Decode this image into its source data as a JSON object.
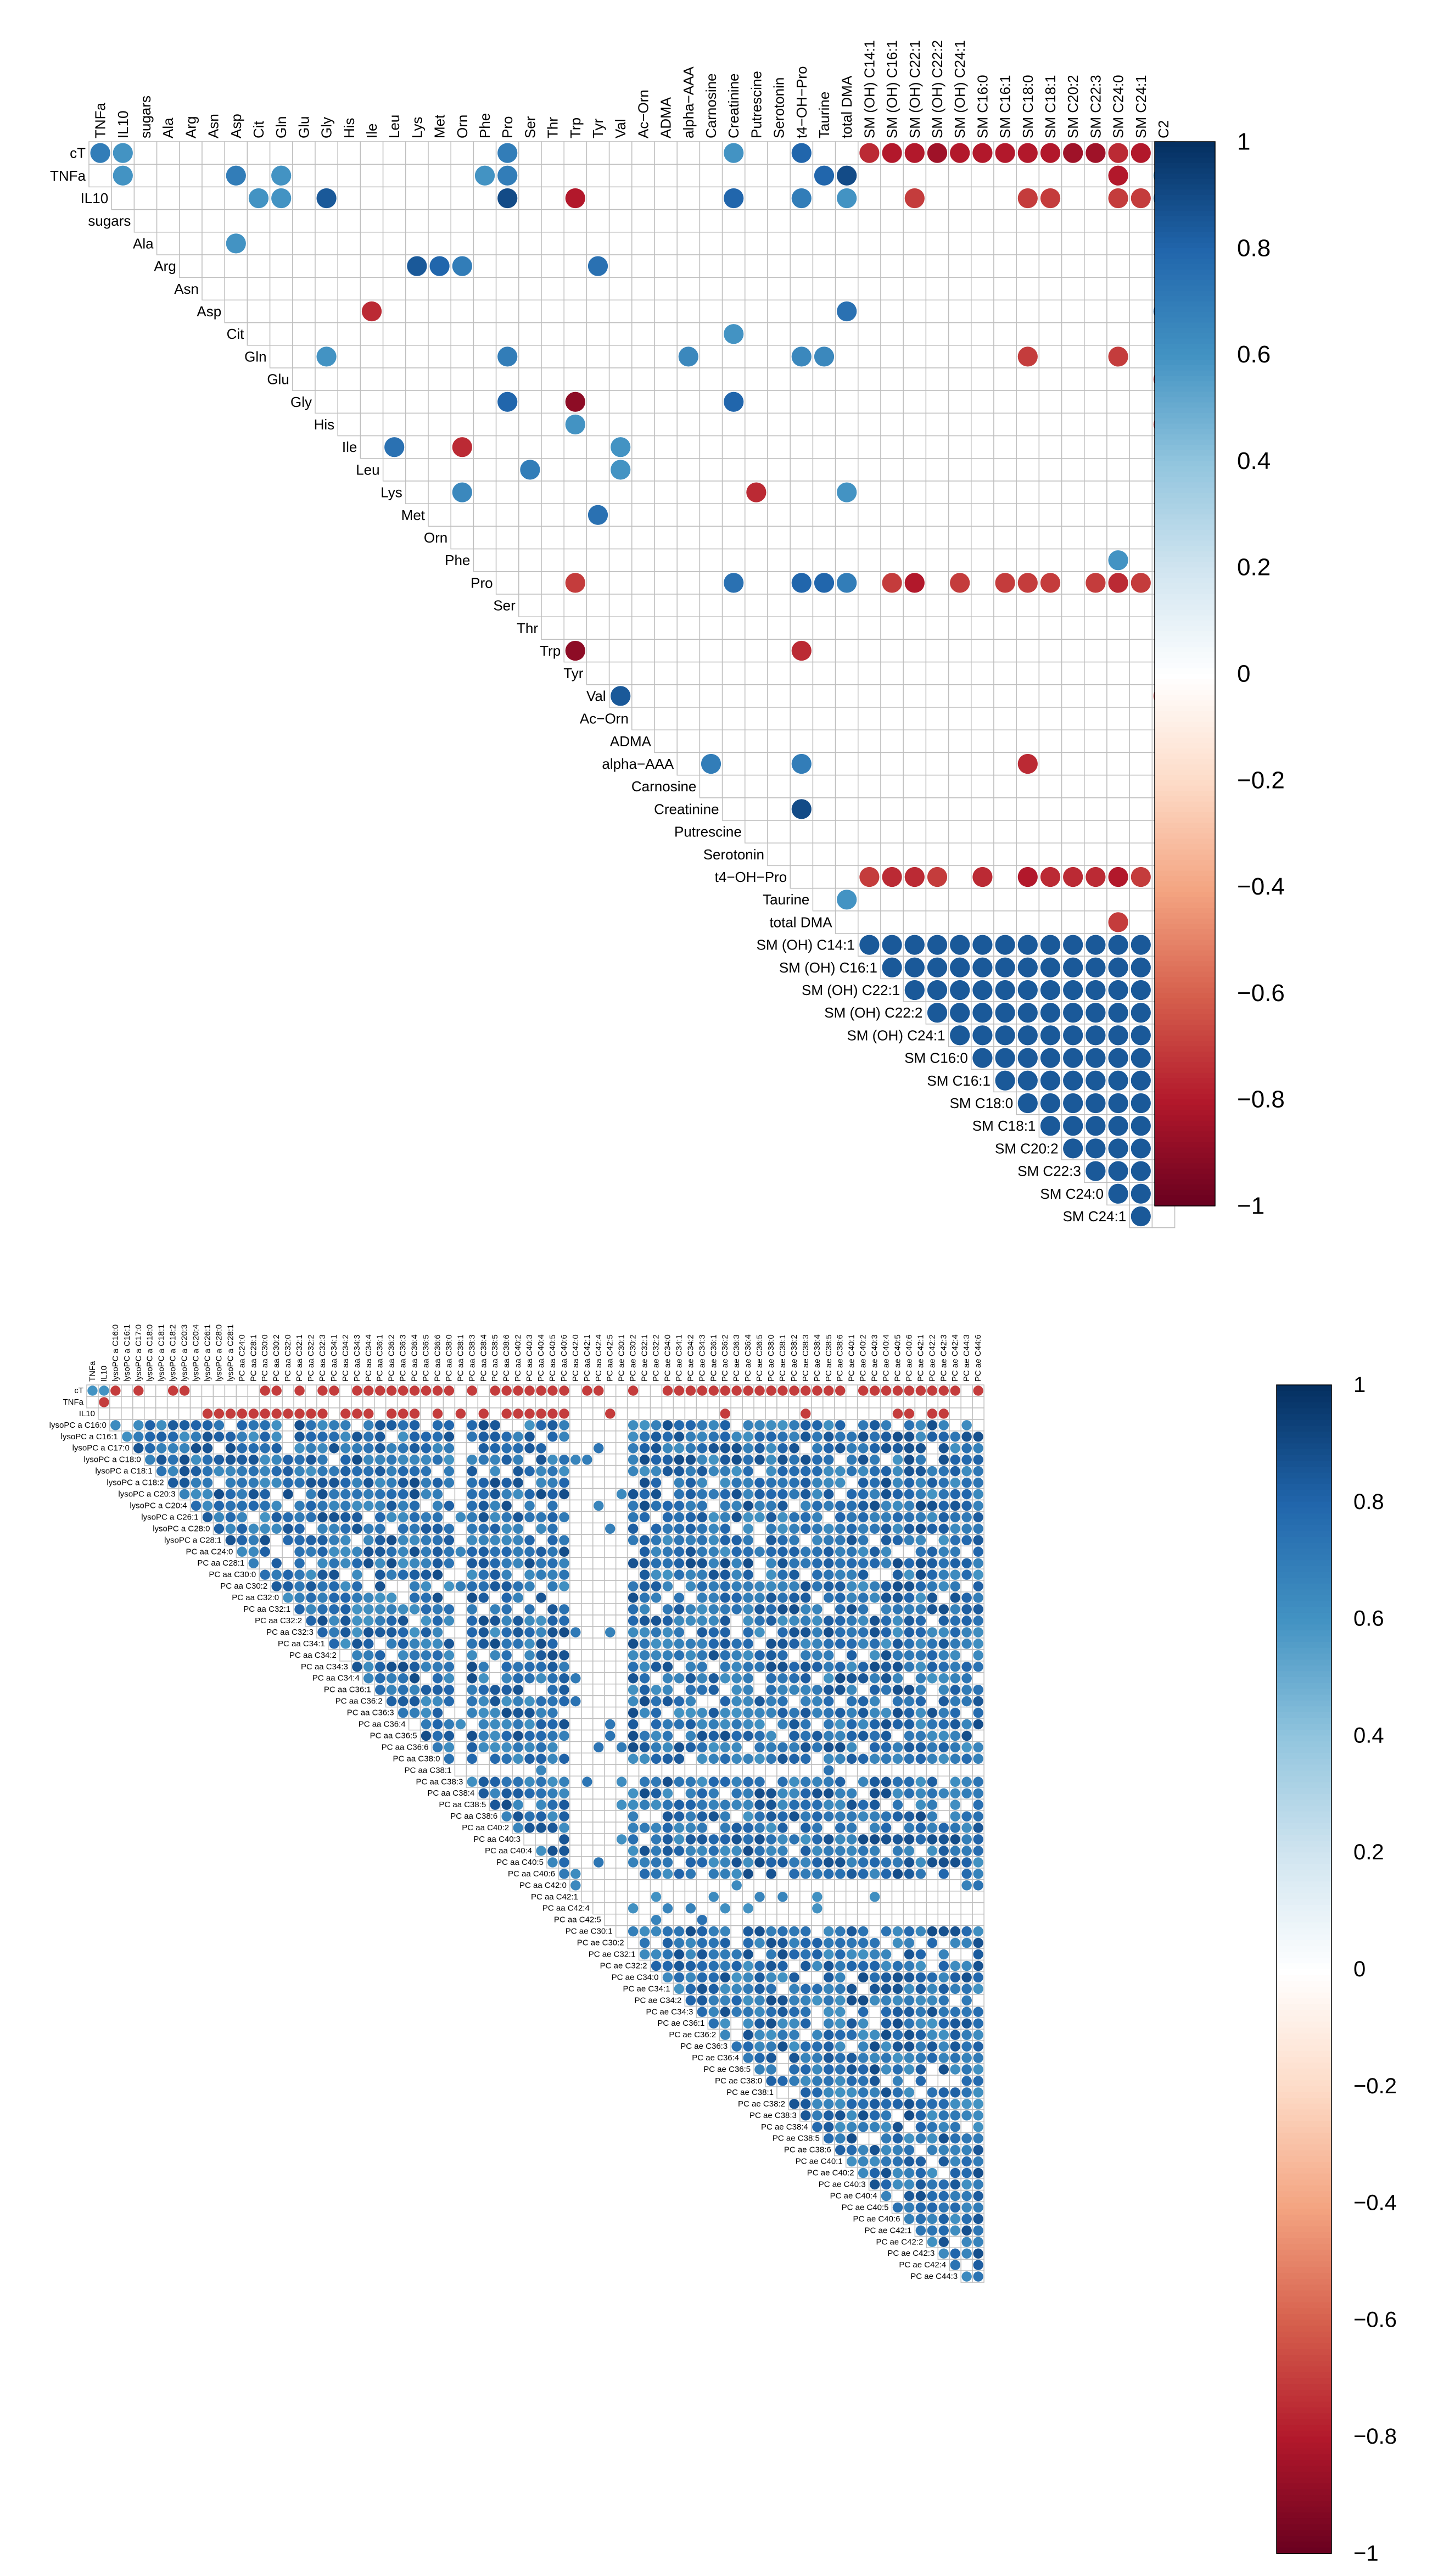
{
  "chart_data": [
    {
      "type": "heatmap",
      "subtype": "correlation-upper-triangle",
      "title": "",
      "columns": [
        "TNFa",
        "IL10",
        "sugars",
        "Ala",
        "Arg",
        "Asn",
        "Asp",
        "Cit",
        "Gln",
        "Glu",
        "Gly",
        "His",
        "Ile",
        "Leu",
        "Lys",
        "Met",
        "Orn",
        "Phe",
        "Pro",
        "Ser",
        "Thr",
        "Trp",
        "Tyr",
        "Val",
        "Ac−Orn",
        "ADMA",
        "alpha−AAA",
        "Carnosine",
        "Creatinine",
        "Putrescine",
        "Serotonin",
        "t4−OH−Pro",
        "Taurine",
        "total DMA",
        "SM (OH) C14:1",
        "SM (OH) C16:1",
        "SM (OH) C22:1",
        "SM (OH) C22:2",
        "SM (OH) C24:1",
        "SM C16:0",
        "SM C16:1",
        "SM C18:0",
        "SM C18:1",
        "SM C20:2",
        "SM C22:3",
        "SM C24:0",
        "SM C24:1",
        "C2"
      ],
      "rows": [
        "cT",
        "TNFa",
        "IL10",
        "sugars",
        "Ala",
        "Arg",
        "Asn",
        "Asp",
        "Cit",
        "Gln",
        "Glu",
        "Gly",
        "His",
        "Ile",
        "Leu",
        "Lys",
        "Met",
        "Orn",
        "Phe",
        "Pro",
        "Ser",
        "Thr",
        "Trp",
        "Tyr",
        "Val",
        "Ac−Orn",
        "ADMA",
        "alpha−AAA",
        "Carnosine",
        "Creatinine",
        "Putrescine",
        "Serotonin",
        "t4−OH−Pro",
        "Taurine",
        "total DMA",
        "SM (OH) C14:1",
        "SM (OH) C16:1",
        "SM (OH) C22:1",
        "SM (OH) C22:2",
        "SM (OH) C24:1",
        "SM C16:0",
        "SM C16:1",
        "SM C18:0",
        "SM C18:1",
        "SM C20:2",
        "SM C22:3",
        "SM C24:0",
        "SM C24:1"
      ],
      "cells": [
        [
          0,
          0,
          0.7
        ],
        [
          0,
          1,
          0.6
        ],
        [
          0,
          18,
          0.7
        ],
        [
          0,
          28,
          0.6
        ],
        [
          0,
          31,
          0.8
        ],
        [
          0,
          34,
          -0.75
        ],
        [
          0,
          35,
          -0.8
        ],
        [
          0,
          36,
          -0.8
        ],
        [
          0,
          37,
          -0.85
        ],
        [
          0,
          38,
          -0.8
        ],
        [
          0,
          39,
          -0.8
        ],
        [
          0,
          40,
          -0.8
        ],
        [
          0,
          41,
          -0.8
        ],
        [
          0,
          42,
          -0.8
        ],
        [
          0,
          43,
          -0.85
        ],
        [
          0,
          44,
          -0.85
        ],
        [
          0,
          45,
          -0.75
        ],
        [
          0,
          46,
          -0.8
        ],
        [
          1,
          1,
          0.6
        ],
        [
          1,
          6,
          0.7
        ],
        [
          1,
          8,
          0.6
        ],
        [
          1,
          17,
          0.6
        ],
        [
          1,
          18,
          0.7
        ],
        [
          1,
          32,
          0.8
        ],
        [
          1,
          33,
          0.9
        ],
        [
          1,
          45,
          -0.8
        ],
        [
          1,
          47,
          0.6
        ],
        [
          2,
          7,
          0.6
        ],
        [
          2,
          8,
          0.6
        ],
        [
          2,
          10,
          0.85
        ],
        [
          2,
          18,
          0.9
        ],
        [
          2,
          21,
          -0.8
        ],
        [
          2,
          28,
          0.8
        ],
        [
          2,
          31,
          0.7
        ],
        [
          2,
          33,
          0.6
        ],
        [
          2,
          36,
          -0.7
        ],
        [
          2,
          41,
          -0.7
        ],
        [
          2,
          42,
          -0.7
        ],
        [
          2,
          45,
          -0.7
        ],
        [
          2,
          46,
          -0.7
        ],
        [
          2,
          47,
          0.7
        ],
        [
          4,
          6,
          0.6
        ],
        [
          5,
          14,
          0.85
        ],
        [
          5,
          15,
          0.8
        ],
        [
          5,
          16,
          0.7
        ],
        [
          5,
          22,
          0.75
        ],
        [
          7,
          12,
          -0.75
        ],
        [
          7,
          33,
          0.75
        ],
        [
          7,
          47,
          0.85
        ],
        [
          8,
          28,
          0.6
        ],
        [
          9,
          10,
          0.6
        ],
        [
          9,
          18,
          0.7
        ],
        [
          9,
          26,
          0.65
        ],
        [
          9,
          31,
          0.65
        ],
        [
          9,
          32,
          0.65
        ],
        [
          9,
          41,
          -0.7
        ],
        [
          9,
          45,
          -0.7
        ],
        [
          10,
          47,
          -0.75
        ],
        [
          11,
          18,
          0.8
        ],
        [
          11,
          21,
          -0.9
        ],
        [
          11,
          28,
          0.8
        ],
        [
          12,
          21,
          0.6
        ],
        [
          12,
          47,
          -0.7
        ],
        [
          13,
          13,
          0.75
        ],
        [
          13,
          16,
          -0.75
        ],
        [
          13,
          23,
          0.6
        ],
        [
          14,
          19,
          0.7
        ],
        [
          14,
          23,
          0.6
        ],
        [
          15,
          16,
          0.65
        ],
        [
          15,
          29,
          -0.75
        ],
        [
          15,
          33,
          0.6
        ],
        [
          16,
          22,
          0.75
        ],
        [
          18,
          45,
          0.6
        ],
        [
          19,
          21,
          -0.7
        ],
        [
          19,
          28,
          0.75
        ],
        [
          19,
          31,
          0.8
        ],
        [
          19,
          32,
          0.8
        ],
        [
          19,
          33,
          0.7
        ],
        [
          19,
          35,
          -0.7
        ],
        [
          19,
          36,
          -0.8
        ],
        [
          19,
          38,
          -0.7
        ],
        [
          19,
          40,
          -0.7
        ],
        [
          19,
          41,
          -0.7
        ],
        [
          19,
          42,
          -0.7
        ],
        [
          19,
          44,
          -0.7
        ],
        [
          19,
          45,
          -0.75
        ],
        [
          19,
          46,
          -0.7
        ],
        [
          22,
          21,
          -0.9
        ],
        [
          22,
          31,
          -0.75
        ],
        [
          24,
          23,
          0.85
        ],
        [
          24,
          47,
          -0.7
        ],
        [
          27,
          27,
          0.7
        ],
        [
          27,
          31,
          0.7
        ],
        [
          27,
          41,
          -0.75
        ],
        [
          29,
          31,
          0.9
        ],
        [
          32,
          34,
          -0.7
        ],
        [
          32,
          35,
          -0.75
        ],
        [
          32,
          36,
          -0.75
        ],
        [
          32,
          37,
          -0.7
        ],
        [
          32,
          39,
          -0.75
        ],
        [
          32,
          41,
          -0.8
        ],
        [
          32,
          42,
          -0.75
        ],
        [
          32,
          43,
          -0.75
        ],
        [
          32,
          44,
          -0.75
        ],
        [
          32,
          45,
          -0.8
        ],
        [
          32,
          46,
          -0.7
        ],
        [
          33,
          33,
          0.6
        ],
        [
          34,
          45,
          -0.7
        ]
      ],
      "dense_block": {
        "rows_from": 35,
        "rows_to": 47,
        "cols_from": 34,
        "cols_to": 46,
        "value": 0.85
      },
      "colorbar": {
        "min": -1,
        "max": 1,
        "ticks": [
          "1",
          "0.8",
          "0.6",
          "0.4",
          "0.2",
          "0",
          "−0.2",
          "−0.4",
          "−0.6",
          "−0.8",
          "−1"
        ]
      }
    },
    {
      "type": "heatmap",
      "subtype": "correlation-upper-triangle",
      "title": "",
      "columns": [
        "TNFa",
        "IL10",
        "lysoPC a C16:0",
        "lysoPC a C16:1",
        "lysoPC a C17:0",
        "lysoPC a C18:0",
        "lysoPC a C18:1",
        "lysoPC a C18:2",
        "lysoPC a C20:3",
        "lysoPC a C20:4",
        "lysoPC a C26:1",
        "lysoPC a C28:0",
        "lysoPC a C28:1",
        "PC aa C24:0",
        "PC aa C28:1",
        "PC aa C30:0",
        "PC aa C30:2",
        "PC aa C32:0",
        "PC aa C32:1",
        "PC aa C32:2",
        "PC aa C32:3",
        "PC aa C34:1",
        "PC aa C34:2",
        "PC aa C34:3",
        "PC aa C34:4",
        "PC aa C36:1",
        "PC aa C36:2",
        "PC aa C36:3",
        "PC aa C36:4",
        "PC aa C36:5",
        "PC aa C36:6",
        "PC aa C38:0",
        "PC aa C38:1",
        "PC aa C38:3",
        "PC aa C38:4",
        "PC aa C38:5",
        "PC aa C38:6",
        "PC aa C40:2",
        "PC aa C40:3",
        "PC aa C40:4",
        "PC aa C40:5",
        "PC aa C40:6",
        "PC aa C42:0",
        "PC aa C42:1",
        "PC aa C42:4",
        "PC aa C42:5",
        "PC ae C30:1",
        "PC ae C30:2",
        "PC ae C32:1",
        "PC ae C32:2",
        "PC ae C34:0",
        "PC ae C34:1",
        "PC ae C34:2",
        "PC ae C34:3",
        "PC ae C36:1",
        "PC ae C36:2",
        "PC ae C36:3",
        "PC ae C36:4",
        "PC ae C36:5",
        "PC ae C38:0",
        "PC ae C38:1",
        "PC ae C38:2",
        "PC ae C38:3",
        "PC ae C38:4",
        "PC ae C38:5",
        "PC ae C38:6",
        "PC ae C40:1",
        "PC ae C40:2",
        "PC ae C40:3",
        "PC ae C40:4",
        "PC ae C40:5",
        "PC ae C40:6",
        "PC ae C42:1",
        "PC ae C42:2",
        "PC ae C42:3",
        "PC ae C42:4",
        "PC ae C44:3",
        "PC ae C44:6"
      ],
      "rows": [
        "cT",
        "TNFa",
        "IL10",
        "lysoPC a C16:0",
        "lysoPC a C16:1",
        "lysoPC a C17:0",
        "lysoPC a C18:0",
        "lysoPC a C18:1",
        "lysoPC a C18:2",
        "lysoPC a C20:3",
        "lysoPC a C20:4",
        "lysoPC a C26:1",
        "lysoPC a C28:0",
        "lysoPC a C28:1",
        "PC aa C24:0",
        "PC aa C28:1",
        "PC aa C30:0",
        "PC aa C30:2",
        "PC aa C32:0",
        "PC aa C32:1",
        "PC aa C32:2",
        "PC aa C32:3",
        "PC aa C34:1",
        "PC aa C34:2",
        "PC aa C34:3",
        "PC aa C34:4",
        "PC aa C36:1",
        "PC aa C36:2",
        "PC aa C36:3",
        "PC aa C36:4",
        "PC aa C36:5",
        "PC aa C36:6",
        "PC aa C38:0",
        "PC aa C38:1",
        "PC aa C38:3",
        "PC aa C38:4",
        "PC aa C38:5",
        "PC aa C38:6",
        "PC aa C40:2",
        "PC aa C40:3",
        "PC aa C40:4",
        "PC aa C40:5",
        "PC aa C40:6",
        "PC aa C42:0",
        "PC aa C42:1",
        "PC aa C42:4",
        "PC aa C42:5",
        "PC ae C30:1",
        "PC ae C30:2",
        "PC ae C32:1",
        "PC ae C32:2",
        "PC ae C34:0",
        "PC ae C34:1",
        "PC ae C34:2",
        "PC ae C34:3",
        "PC ae C36:1",
        "PC ae C36:2",
        "PC ae C36:3",
        "PC ae C36:4",
        "PC ae C36:5",
        "PC ae C38:0",
        "PC ae C38:1",
        "PC ae C38:2",
        "PC ae C38:3",
        "PC ae C38:4",
        "PC ae C38:5",
        "PC ae C38:6",
        "PC ae C40:1",
        "PC ae C40:2",
        "PC ae C40:3",
        "PC ae C40:4",
        "PC ae C40:5",
        "PC ae C40:6",
        "PC ae C42:1",
        "PC ae C42:2",
        "PC ae C42:3",
        "PC ae C42:4",
        "PC ae C44:3"
      ],
      "description_of_pattern": "upper-triangle correlation matrix; phosphatidylcholine rows mostly strong positive correlations (0.6 to 0.9); cT and IL10 rows show scattered negative correlations (-0.6 to -0.85)",
      "cells": [
        [
          0,
          0,
          0.6
        ],
        [
          0,
          1,
          0.6
        ],
        [
          1,
          1,
          -0.7
        ]
      ],
      "negative_row_cT": [
        2,
        4,
        7,
        8,
        15,
        16,
        18,
        20,
        21,
        23,
        24,
        25,
        26,
        27,
        28,
        29,
        30,
        31,
        33,
        35,
        36,
        37,
        38,
        39,
        40,
        41,
        43,
        44,
        47,
        50,
        51,
        52,
        53,
        54,
        55,
        56,
        57,
        58,
        59,
        60,
        61,
        62,
        63,
        64,
        65,
        67,
        68,
        69,
        70,
        71,
        72,
        73,
        74,
        75,
        77
      ],
      "negative_row_IL10": [
        10,
        11,
        12,
        13,
        14,
        15,
        16,
        17,
        18,
        19,
        20,
        22,
        23,
        24,
        26,
        27,
        28,
        30,
        32,
        34,
        36,
        37,
        38,
        39,
        40,
        41,
        45,
        55,
        62,
        70,
        71,
        73,
        74
      ],
      "colorbar": {
        "min": -1,
        "max": 1,
        "ticks": [
          "1",
          "0.8",
          "0.6",
          "0.4",
          "0.2",
          "0",
          "−0.2",
          "−0.4",
          "−0.6",
          "−0.8",
          "−1"
        ]
      }
    }
  ]
}
